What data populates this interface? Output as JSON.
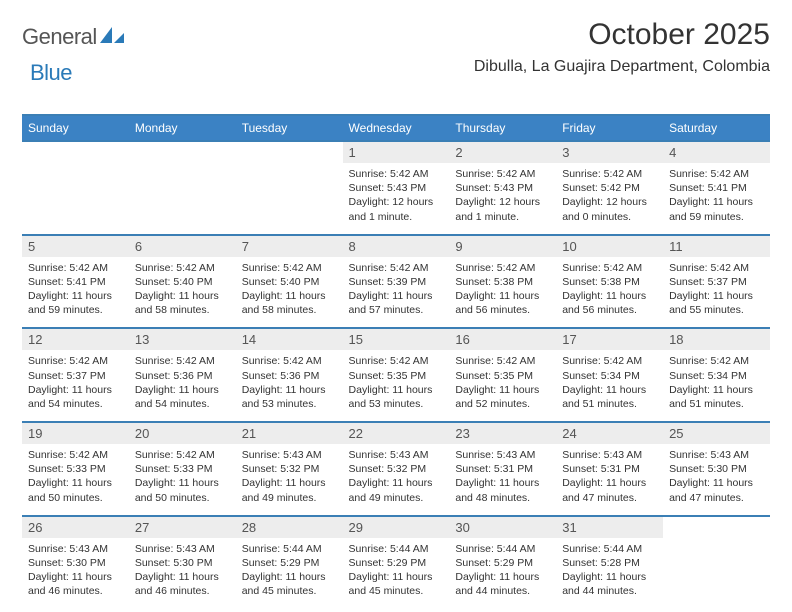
{
  "logo": {
    "text1": "General",
    "text2": "Blue"
  },
  "title": "October 2025",
  "location": "Dibulla, La Guajira Department, Colombia",
  "colors": {
    "header_bg": "#3b82c4",
    "header_text": "#ffffff",
    "rule": "#3b7fb5",
    "daynum_bg": "#ededed",
    "text": "#333333",
    "logo_blue": "#2a7ab8"
  },
  "day_names": [
    "Sunday",
    "Monday",
    "Tuesday",
    "Wednesday",
    "Thursday",
    "Friday",
    "Saturday"
  ],
  "weeks": [
    [
      null,
      null,
      null,
      {
        "n": "1",
        "sr": "5:42 AM",
        "ss": "5:43 PM",
        "dl": "12 hours and 1 minute."
      },
      {
        "n": "2",
        "sr": "5:42 AM",
        "ss": "5:43 PM",
        "dl": "12 hours and 1 minute."
      },
      {
        "n": "3",
        "sr": "5:42 AM",
        "ss": "5:42 PM",
        "dl": "12 hours and 0 minutes."
      },
      {
        "n": "4",
        "sr": "5:42 AM",
        "ss": "5:41 PM",
        "dl": "11 hours and 59 minutes."
      }
    ],
    [
      {
        "n": "5",
        "sr": "5:42 AM",
        "ss": "5:41 PM",
        "dl": "11 hours and 59 minutes."
      },
      {
        "n": "6",
        "sr": "5:42 AM",
        "ss": "5:40 PM",
        "dl": "11 hours and 58 minutes."
      },
      {
        "n": "7",
        "sr": "5:42 AM",
        "ss": "5:40 PM",
        "dl": "11 hours and 58 minutes."
      },
      {
        "n": "8",
        "sr": "5:42 AM",
        "ss": "5:39 PM",
        "dl": "11 hours and 57 minutes."
      },
      {
        "n": "9",
        "sr": "5:42 AM",
        "ss": "5:38 PM",
        "dl": "11 hours and 56 minutes."
      },
      {
        "n": "10",
        "sr": "5:42 AM",
        "ss": "5:38 PM",
        "dl": "11 hours and 56 minutes."
      },
      {
        "n": "11",
        "sr": "5:42 AM",
        "ss": "5:37 PM",
        "dl": "11 hours and 55 minutes."
      }
    ],
    [
      {
        "n": "12",
        "sr": "5:42 AM",
        "ss": "5:37 PM",
        "dl": "11 hours and 54 minutes."
      },
      {
        "n": "13",
        "sr": "5:42 AM",
        "ss": "5:36 PM",
        "dl": "11 hours and 54 minutes."
      },
      {
        "n": "14",
        "sr": "5:42 AM",
        "ss": "5:36 PM",
        "dl": "11 hours and 53 minutes."
      },
      {
        "n": "15",
        "sr": "5:42 AM",
        "ss": "5:35 PM",
        "dl": "11 hours and 53 minutes."
      },
      {
        "n": "16",
        "sr": "5:42 AM",
        "ss": "5:35 PM",
        "dl": "11 hours and 52 minutes."
      },
      {
        "n": "17",
        "sr": "5:42 AM",
        "ss": "5:34 PM",
        "dl": "11 hours and 51 minutes."
      },
      {
        "n": "18",
        "sr": "5:42 AM",
        "ss": "5:34 PM",
        "dl": "11 hours and 51 minutes."
      }
    ],
    [
      {
        "n": "19",
        "sr": "5:42 AM",
        "ss": "5:33 PM",
        "dl": "11 hours and 50 minutes."
      },
      {
        "n": "20",
        "sr": "5:42 AM",
        "ss": "5:33 PM",
        "dl": "11 hours and 50 minutes."
      },
      {
        "n": "21",
        "sr": "5:43 AM",
        "ss": "5:32 PM",
        "dl": "11 hours and 49 minutes."
      },
      {
        "n": "22",
        "sr": "5:43 AM",
        "ss": "5:32 PM",
        "dl": "11 hours and 49 minutes."
      },
      {
        "n": "23",
        "sr": "5:43 AM",
        "ss": "5:31 PM",
        "dl": "11 hours and 48 minutes."
      },
      {
        "n": "24",
        "sr": "5:43 AM",
        "ss": "5:31 PM",
        "dl": "11 hours and 47 minutes."
      },
      {
        "n": "25",
        "sr": "5:43 AM",
        "ss": "5:30 PM",
        "dl": "11 hours and 47 minutes."
      }
    ],
    [
      {
        "n": "26",
        "sr": "5:43 AM",
        "ss": "5:30 PM",
        "dl": "11 hours and 46 minutes."
      },
      {
        "n": "27",
        "sr": "5:43 AM",
        "ss": "5:30 PM",
        "dl": "11 hours and 46 minutes."
      },
      {
        "n": "28",
        "sr": "5:44 AM",
        "ss": "5:29 PM",
        "dl": "11 hours and 45 minutes."
      },
      {
        "n": "29",
        "sr": "5:44 AM",
        "ss": "5:29 PM",
        "dl": "11 hours and 45 minutes."
      },
      {
        "n": "30",
        "sr": "5:44 AM",
        "ss": "5:29 PM",
        "dl": "11 hours and 44 minutes."
      },
      {
        "n": "31",
        "sr": "5:44 AM",
        "ss": "5:28 PM",
        "dl": "11 hours and 44 minutes."
      },
      null
    ]
  ],
  "labels": {
    "sunrise": "Sunrise:",
    "sunset": "Sunset:",
    "daylight": "Daylight:"
  }
}
